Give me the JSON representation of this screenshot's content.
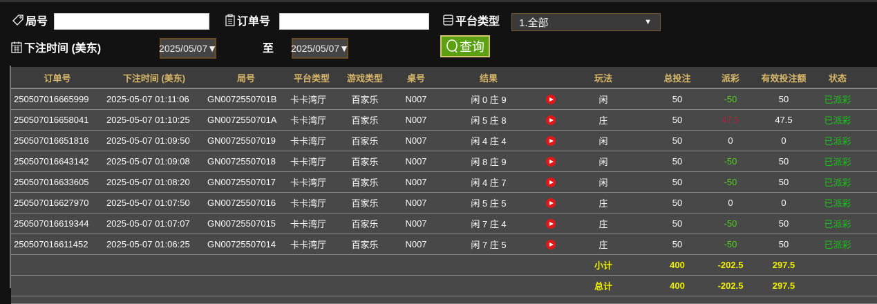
{
  "filters": {
    "round_label": "局号",
    "round_value": "",
    "order_label": "订单号",
    "order_value": "",
    "platform_label": "平台类型",
    "platform_value": "1.全部",
    "time_label": "下注时间 (美东)",
    "date_from": "2025/05/07",
    "to_label": "至",
    "date_to": "2025/05/07",
    "query_label": "查询"
  },
  "table": {
    "headers": [
      "订单号",
      "下注时间 (美东)",
      "局号",
      "平台类型",
      "游戏类型",
      "桌号",
      "结果",
      "",
      "玩法",
      "总投注",
      "派彩",
      "有效投注额",
      "状态"
    ],
    "rows": [
      {
        "order": "250507016665999",
        "time": "2025-05-07 01:11:06",
        "round": "GN0072550701B",
        "platform": "卡卡湾厅",
        "game": "百家乐",
        "table": "N007",
        "result": "闲 0 庄 9",
        "play": "闲",
        "bet": "50",
        "payout": "-50",
        "valid": "50",
        "status": "已派彩"
      },
      {
        "order": "250507016658041",
        "time": "2025-05-07 01:10:25",
        "round": "GN0072550701A",
        "platform": "卡卡湾厅",
        "game": "百家乐",
        "table": "N007",
        "result": "闲 5 庄 8",
        "play": "庄",
        "bet": "50",
        "payout": "47.5",
        "valid": "47.5",
        "status": "已派彩"
      },
      {
        "order": "250507016651816",
        "time": "2025-05-07 01:09:50",
        "round": "GN00725507019",
        "platform": "卡卡湾厅",
        "game": "百家乐",
        "table": "N007",
        "result": "闲 4 庄 4",
        "play": "闲",
        "bet": "50",
        "payout": "0",
        "valid": "0",
        "status": "已派彩"
      },
      {
        "order": "250507016643142",
        "time": "2025-05-07 01:09:08",
        "round": "GN00725507018",
        "platform": "卡卡湾厅",
        "game": "百家乐",
        "table": "N007",
        "result": "闲 8 庄 9",
        "play": "闲",
        "bet": "50",
        "payout": "-50",
        "valid": "50",
        "status": "已派彩"
      },
      {
        "order": "250507016633605",
        "time": "2025-05-07 01:08:20",
        "round": "GN00725507017",
        "platform": "卡卡湾厅",
        "game": "百家乐",
        "table": "N007",
        "result": "闲 4 庄 7",
        "play": "闲",
        "bet": "50",
        "payout": "-50",
        "valid": "50",
        "status": "已派彩"
      },
      {
        "order": "250507016627970",
        "time": "2025-05-07 01:07:50",
        "round": "GN00725507016",
        "platform": "卡卡湾厅",
        "game": "百家乐",
        "table": "N007",
        "result": "闲 5 庄 5",
        "play": "庄",
        "bet": "50",
        "payout": "0",
        "valid": "0",
        "status": "已派彩"
      },
      {
        "order": "250507016619344",
        "time": "2025-05-07 01:07:07",
        "round": "GN00725507015",
        "platform": "卡卡湾厅",
        "game": "百家乐",
        "table": "N007",
        "result": "闲 7 庄 4",
        "play": "庄",
        "bet": "50",
        "payout": "-50",
        "valid": "50",
        "status": "已派彩"
      },
      {
        "order": "250507016611452",
        "time": "2025-05-07 01:06:25",
        "round": "GN00725507014",
        "platform": "卡卡湾厅",
        "game": "百家乐",
        "table": "N007",
        "result": "闲 7 庄 5",
        "play": "庄",
        "bet": "50",
        "payout": "-50",
        "valid": "50",
        "status": "已派彩"
      }
    ],
    "subtotal": {
      "label": "小计",
      "bet": "400",
      "payout": "-202.5",
      "valid": "297.5"
    },
    "total": {
      "label": "总计",
      "bet": "400",
      "payout": "-202.5",
      "valid": "297.5"
    }
  },
  "colors": {
    "header_text": "#d9b86a",
    "negative": "#4fd21e",
    "positive": "#b0223a",
    "status": "#18c418",
    "sum": "#f0f000",
    "button": "#5aa012"
  }
}
